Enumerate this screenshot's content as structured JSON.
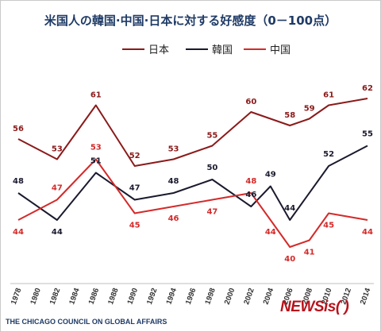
{
  "chart_data": {
    "type": "line",
    "title": "米国人の韓国·中国·日本に対する好感度（0－100点）",
    "x": [
      "1978",
      "1980",
      "1982",
      "1984",
      "1986",
      "1988",
      "1990",
      "1992",
      "1994",
      "1996",
      "1998",
      "2000",
      "2002",
      "2004",
      "2006",
      "2008",
      "2010",
      "2012",
      "2014"
    ],
    "series": [
      {
        "name": "日本",
        "color": "#8b1a1a",
        "points": [
          [
            1978,
            56
          ],
          [
            1982,
            53
          ],
          [
            1986,
            61
          ],
          [
            1990,
            52
          ],
          [
            1994,
            53
          ],
          [
            1998,
            55
          ],
          [
            2002,
            60
          ],
          [
            2006,
            58
          ],
          [
            2008,
            59
          ],
          [
            2010,
            61
          ],
          [
            2014,
            62
          ]
        ]
      },
      {
        "name": "韓国",
        "color": "#1a1a2e",
        "points": [
          [
            1978,
            48
          ],
          [
            1982,
            44
          ],
          [
            1986,
            51
          ],
          [
            1990,
            47
          ],
          [
            1994,
            48
          ],
          [
            1998,
            50
          ],
          [
            2002,
            46
          ],
          [
            2004,
            49
          ],
          [
            2006,
            44
          ],
          [
            2010,
            52
          ],
          [
            2014,
            55
          ]
        ]
      },
      {
        "name": "中国",
        "color": "#d42a2a",
        "points": [
          [
            1978,
            44
          ],
          [
            1982,
            47
          ],
          [
            1986,
            53
          ],
          [
            1990,
            45
          ],
          [
            1994,
            46
          ],
          [
            1998,
            47
          ],
          [
            2002,
            48
          ],
          [
            2004,
            44
          ],
          [
            2006,
            40
          ],
          [
            2008,
            41
          ],
          [
            2010,
            45
          ],
          [
            2014,
            44
          ]
        ]
      }
    ],
    "legend_position": "top-center",
    "grid": false
  },
  "source": "THE CHICAGO COUNCIL ON GLOBAL AFFAIRS",
  "watermark": "NEWSis(   )"
}
